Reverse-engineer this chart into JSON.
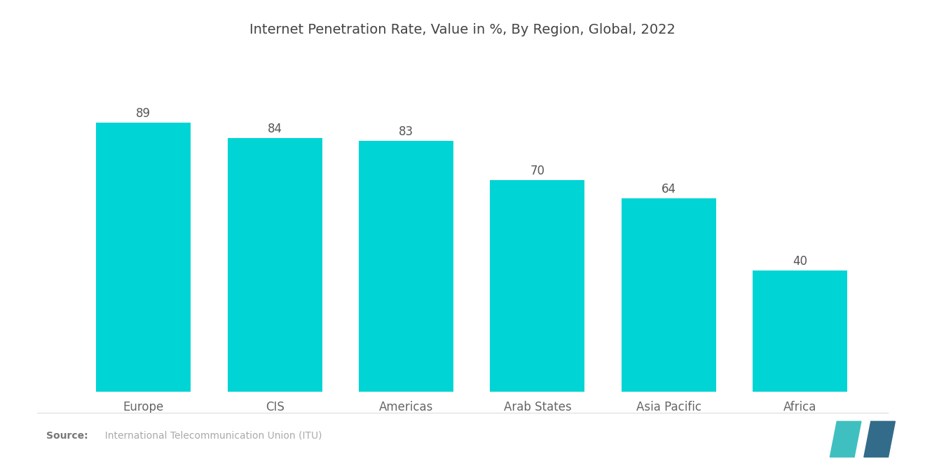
{
  "title": "Internet Penetration Rate, Value in %, By Region, Global, 2022",
  "categories": [
    "Europe",
    "CIS",
    "Americas",
    "Arab States",
    "Asia Pacific",
    "Africa"
  ],
  "values": [
    89,
    84,
    83,
    70,
    64,
    40
  ],
  "bar_color": "#00D4D4",
  "background_color": "#ffffff",
  "title_fontsize": 14,
  "label_fontsize": 12,
  "value_fontsize": 12,
  "source_bold": "Source:",
  "source_normal": "  International Telecommunication Union (ITU)",
  "ylim": [
    0,
    105
  ],
  "bar_width": 0.72,
  "logo_left_color": "#40BFC0",
  "logo_right_color": "#336B8A"
}
